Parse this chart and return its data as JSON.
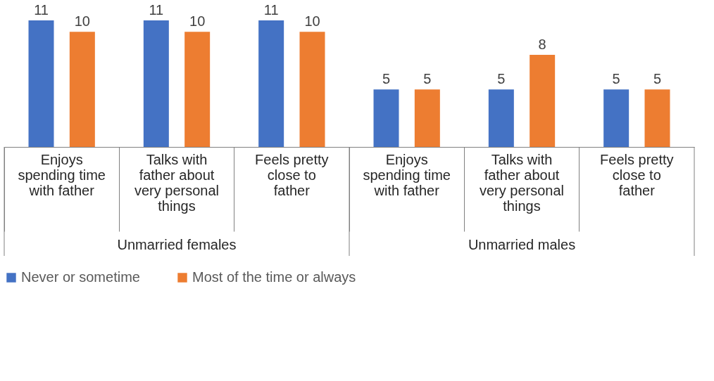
{
  "chart_data": {
    "type": "bar",
    "categories": [
      "Enjoys spending time with father",
      "Talks with father about very personal things",
      "Feels pretty close to father",
      "Enjoys spending time with father",
      "Talks with father about very personal things",
      "Feels pretty close to father"
    ],
    "series": [
      {
        "name": "Never or sometime",
        "color": "#4472c4",
        "values": [
          11,
          11,
          11,
          5,
          5,
          5
        ]
      },
      {
        "name": "Most of the time or always",
        "color": "#ed7d31",
        "values": [
          10,
          10,
          10,
          5,
          8,
          5
        ]
      }
    ],
    "annotations": [
      "Unmarried females",
      "Unmarried males"
    ],
    "data_labels": true,
    "legend": "bottom",
    "grid": false
  }
}
